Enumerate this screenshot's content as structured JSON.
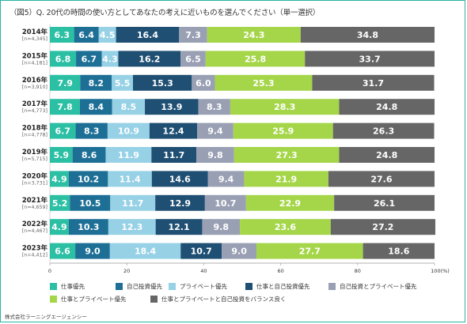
{
  "title": "（図5）Q. 20代の時間の使い方としてあなたの考えに近いものを選んでください（単一選択）",
  "source": "株式会社ラーニングエージェンシー",
  "colors": [
    "#2bbfa3",
    "#1e6f96",
    "#97d1e6",
    "#1f4f73",
    "#9aa0b4",
    "#a5d649",
    "#666666"
  ],
  "chart_data": {
    "type": "bar",
    "orientation": "horizontal",
    "stacked": true,
    "categories": [
      "2014年",
      "2015年",
      "2016年",
      "2017年",
      "2018年",
      "2019年",
      "2020年",
      "2021年",
      "2022年",
      "2023年"
    ],
    "category_notes": [
      "[n=4,345]",
      "[n=4,181]",
      "[n=3,910]",
      "[n=4,773]",
      "[n=4,778]",
      "[n=5,715]",
      "[n=3,731]",
      "[n=4,659]",
      "[n=4,467]",
      "[n=4,412]"
    ],
    "series": [
      {
        "name": "仕事優先",
        "values": [
          6.3,
          6.8,
          7.9,
          7.8,
          6.7,
          5.9,
          4.9,
          5.2,
          4.9,
          6.6
        ]
      },
      {
        "name": "自己投資優先",
        "values": [
          6.4,
          6.7,
          8.2,
          8.4,
          8.3,
          8.6,
          10.2,
          10.5,
          10.3,
          9.0
        ]
      },
      {
        "name": "プライベート優先",
        "values": [
          4.5,
          4.3,
          5.5,
          8.5,
          10.9,
          11.9,
          11.4,
          11.7,
          12.3,
          18.4
        ]
      },
      {
        "name": "仕事と自己投資優先",
        "values": [
          16.4,
          16.2,
          15.3,
          13.9,
          12.4,
          11.7,
          14.6,
          12.9,
          12.1,
          10.7
        ]
      },
      {
        "name": "自己投資とプライベート優先",
        "values": [
          7.3,
          6.5,
          6.0,
          8.3,
          9.4,
          9.8,
          9.4,
          10.7,
          9.8,
          9.0
        ]
      },
      {
        "name": "仕事とプライベート優先",
        "values": [
          24.3,
          25.8,
          25.3,
          28.3,
          25.9,
          27.3,
          21.9,
          22.9,
          23.6,
          27.7
        ]
      },
      {
        "name": "仕事とプライベートと自己投資をバランス良く",
        "values": [
          34.8,
          33.7,
          31.7,
          24.8,
          26.3,
          24.8,
          27.6,
          26.1,
          27.2,
          18.6
        ]
      }
    ],
    "xlim": [
      0,
      100
    ],
    "x_ticks": [
      "0",
      "20",
      "40",
      "60",
      "80",
      "100(%)"
    ],
    "legend_position": "bottom",
    "grid": false
  }
}
